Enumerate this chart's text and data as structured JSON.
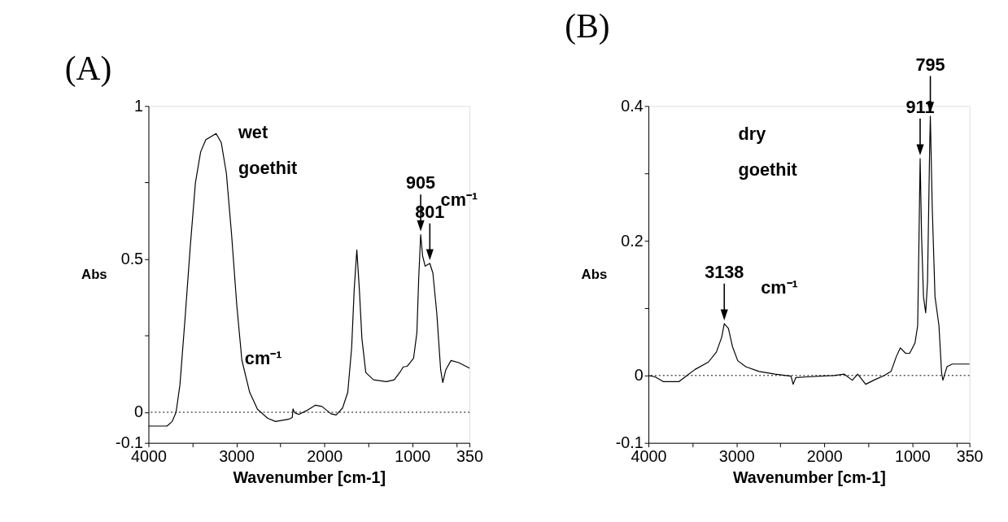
{
  "chart_data": [
    {
      "type": "line",
      "title": "(A)",
      "xlabel": "Wavenumber [cm-1]",
      "ylabel": "Abs",
      "x": [
        4000,
        3789,
        3730,
        3686,
        3642,
        3583,
        3525,
        3466,
        3407,
        3348,
        3231,
        3172,
        3114,
        3055,
        2996,
        2938,
        2849,
        2761,
        2644,
        2556,
        2409,
        2365,
        2356,
        2336,
        2292,
        2204,
        2101,
        2028,
        1925,
        1866,
        1793,
        1734,
        1690,
        1661,
        1631,
        1602,
        1573,
        1529,
        1441,
        1294,
        1206,
        1133,
        1103,
        1059,
        986,
        948,
        927,
        905,
        883,
        854,
        801,
        766,
        722,
        678,
        654,
        619,
        560,
        472,
        350
      ],
      "series": [
        {
          "color": "#000000",
          "values": [
            -0.045,
            -0.045,
            -0.03,
            0,
            0.09,
            0.31,
            0.54,
            0.75,
            0.85,
            0.89,
            0.91,
            0.88,
            0.78,
            0.58,
            0.35,
            0.17,
            0.065,
            0.01,
            -0.02,
            -0.03,
            -0.023,
            -0.017,
            0.011,
            -0.002,
            -0.007,
            0.005,
            0.023,
            0.019,
            -0.005,
            -0.009,
            0.014,
            0.065,
            0.21,
            0.4,
            0.53,
            0.4,
            0.24,
            0.13,
            0.106,
            0.1,
            0.106,
            0.134,
            0.148,
            0.15,
            0.176,
            0.26,
            0.44,
            0.58,
            0.51,
            0.477,
            0.486,
            0.454,
            0.324,
            0.139,
            0.097,
            0.139,
            0.169,
            0.162,
            0.144
          ]
        }
      ],
      "xlim": [
        4000,
        350
      ],
      "xticks": [
        4000,
        {
          "value": 3500,
          "label": null
        },
        3000,
        {
          "value": 2500,
          "label": null
        },
        2000,
        {
          "value": 1500,
          "label": null
        },
        1000,
        {
          "value": 500,
          "label": null
        },
        350
      ],
      "ylim": [
        -0.1,
        1
      ],
      "yticks": [
        -0.1,
        0,
        {
          "value": 0.25,
          "label": null
        },
        0.5,
        {
          "value": 0.75,
          "label": null
        },
        1
      ],
      "ref_lines": [
        {
          "axis": "y",
          "value": 0,
          "line_style": "dotted"
        }
      ],
      "annotations": [
        "wet",
        "goethit",
        "cm⁻¹",
        {
          "text": "905",
          "x": 905,
          "y": 0.58
        },
        {
          "text": "801",
          "x": 801,
          "y": 0.486
        },
        "cm⁻¹"
      ]
    },
    {
      "type": "line",
      "title": "(B)",
      "xlabel": "Wavenumber [cm-1]",
      "ylabel": "Abs",
      "x": [
        4000,
        3924,
        3833,
        3742,
        3652,
        3561,
        3470,
        3318,
        3227,
        3167,
        3138,
        3091,
        3045,
        2985,
        2894,
        2742,
        2561,
        2379,
        2355,
        2324,
        2197,
        1894,
        1773,
        1682,
        1621,
        1530,
        1439,
        1318,
        1242,
        1182,
        1136,
        1076,
        1030,
        970,
        939,
        924,
        911,
        894,
        873,
        848,
        827,
        803,
        795,
        773,
        742,
        697,
        667,
        652,
        606,
        545,
        350
      ],
      "series": [
        {
          "color": "#000000",
          "values": [
            0,
            -0.002,
            -0.009,
            -0.009,
            -0.009,
            0,
            0.009,
            0.02,
            0.035,
            0.057,
            0.077,
            0.07,
            0.043,
            0.022,
            0.013,
            0.006,
            0.002,
            -0.001,
            -0.013,
            -0.003,
            -0.002,
            0,
            0.002,
            -0.007,
            0.002,
            -0.013,
            -0.007,
            0,
            0.006,
            0.028,
            0.041,
            0.033,
            0.033,
            0.048,
            0.074,
            0.204,
            0.322,
            0.204,
            0.117,
            0.093,
            0.139,
            0.335,
            0.385,
            0.248,
            0.117,
            0.074,
            0.004,
            -0.007,
            0.013,
            0.017,
            0.017
          ]
        }
      ],
      "xlim": [
        4000,
        350
      ],
      "xticks": [
        4000,
        {
          "value": 3500,
          "label": null
        },
        3000,
        {
          "value": 2500,
          "label": null
        },
        2000,
        {
          "value": 1500,
          "label": null
        },
        1000,
        {
          "value": 500,
          "label": null
        },
        350
      ],
      "ylim": [
        -0.1,
        0.4
      ],
      "yticks": [
        -0.1,
        0,
        {
          "value": 0.1,
          "label": null
        },
        0.2,
        {
          "value": 0.3,
          "label": null
        },
        0.4
      ],
      "ref_lines": [
        {
          "axis": "y",
          "value": 0,
          "line_style": "dotted"
        }
      ],
      "annotations": [
        "dry",
        "goethit",
        "cm⁻¹",
        {
          "text": "3138",
          "x": 3138,
          "y": 0.077
        },
        {
          "text": "911",
          "x": 911,
          "y": 0.322
        },
        {
          "text": "795",
          "x": 795,
          "y": 0.385
        }
      ]
    }
  ]
}
